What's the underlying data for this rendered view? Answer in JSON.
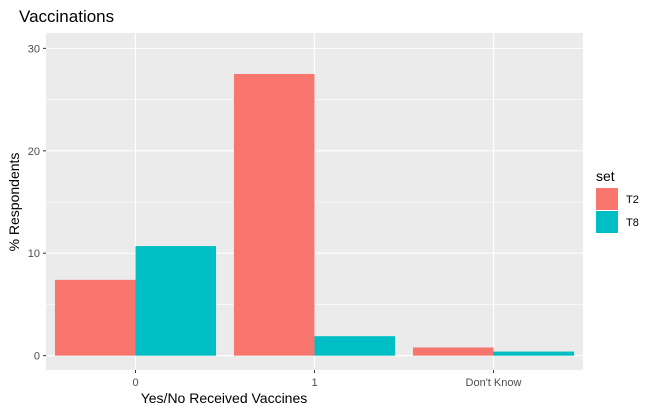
{
  "chart_data": {
    "type": "bar",
    "title": "Vaccinations",
    "xlabel": "Yes/No Received Vaccines",
    "ylabel": "% Respondents",
    "categories": [
      "0",
      "1",
      "Don't Know"
    ],
    "series": [
      {
        "name": "T2",
        "color": "#F8766D",
        "values": [
          7.4,
          27.5,
          0.8
        ]
      },
      {
        "name": "T8",
        "color": "#00BFC4",
        "values": [
          10.7,
          1.9,
          0.4
        ]
      }
    ],
    "ylim": [
      -1.4,
      31.5
    ],
    "yticks": [
      0,
      10,
      20,
      30
    ],
    "legend": {
      "title": "set",
      "position": "right"
    },
    "grid": true,
    "panel_color": "#EBEBEB",
    "grid_color": "#FFFFFF"
  }
}
